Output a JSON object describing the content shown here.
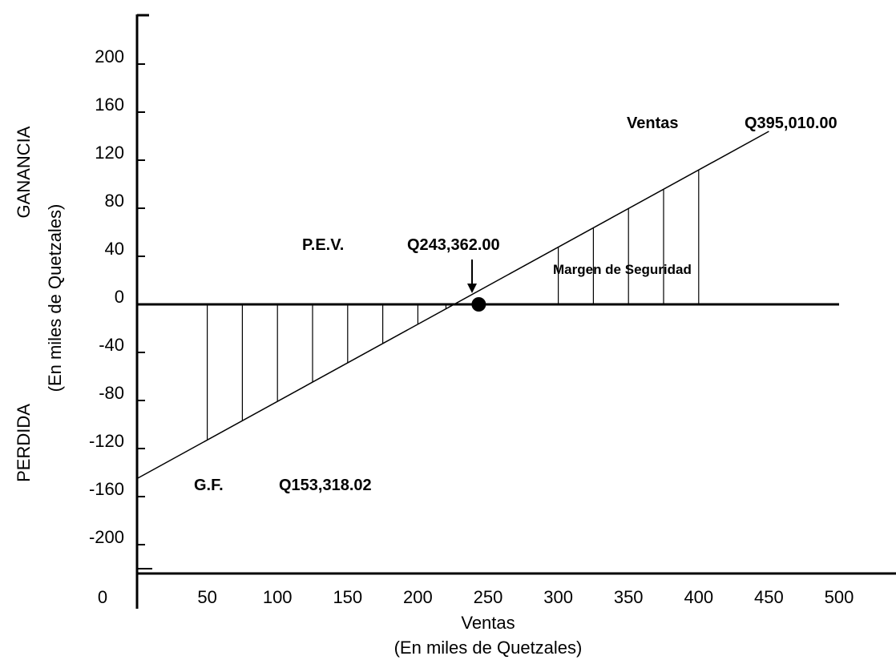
{
  "chart_data": {
    "type": "line",
    "xlabel": "Ventas",
    "xlabel_unit": "(En miles de Quetzales)",
    "ylabel_top": "GANANCIA",
    "ylabel_bottom": "PERDIDA",
    "ylabel_unit": "(En miles de Quetzales)",
    "xlim": [
      0,
      500
    ],
    "ylim": [
      -200,
      200
    ],
    "x_ticks": [
      "0",
      "50",
      "100",
      "150",
      "200",
      "250",
      "300",
      "350",
      "400",
      "450",
      "500"
    ],
    "y_ticks": [
      "200",
      "160",
      "120",
      "80",
      "40",
      "0",
      "-40",
      "-80",
      "-120",
      "-160",
      "-200"
    ],
    "series": [
      {
        "x": [
          0,
          450
        ],
        "y": [
          -145,
          144
        ]
      }
    ],
    "break_even_point": {
      "x": 243.362,
      "y": 0
    },
    "loss_hatch_x": [
      50,
      75,
      100,
      125,
      150,
      175,
      200,
      220
    ],
    "safety_hatch_x": [
      300,
      325,
      350,
      375,
      400
    ],
    "annotations": {
      "ventas_label": "Ventas",
      "ventas_value": "Q395,010.00",
      "pev_label": "P.E.V.",
      "pev_value": "Q243,362.00",
      "margin_label": "Margen de Seguridad",
      "gf_label": "G.F.",
      "gf_value": "Q153,318.02"
    },
    "grid": false,
    "legend": "none"
  }
}
